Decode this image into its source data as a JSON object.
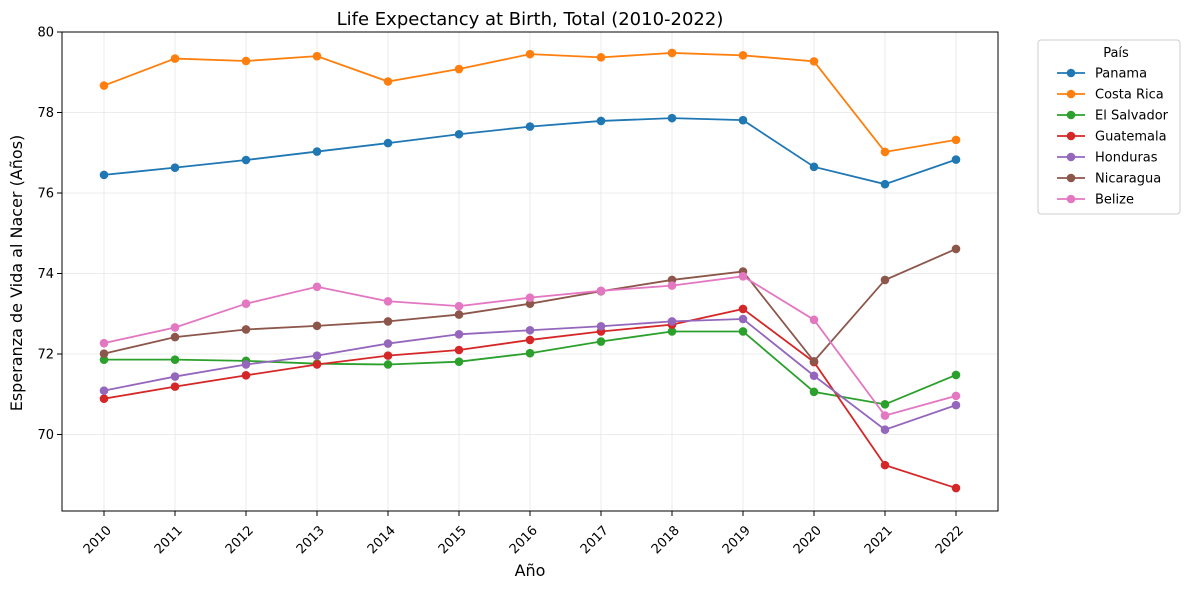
{
  "chart_data": {
    "type": "line",
    "title": "Life Expectancy at Birth, Total (2010-2022)",
    "xlabel": "Año",
    "ylabel": "Esperanza de Vida al Nacer (Años)",
    "x": [
      "2010",
      "2011",
      "2012",
      "2013",
      "2014",
      "2015",
      "2016",
      "2017",
      "2018",
      "2019",
      "2020",
      "2021",
      "2022"
    ],
    "ylim": [
      68.1,
      80.0
    ],
    "yticks": [
      70,
      72,
      74,
      76,
      78,
      80
    ],
    "grid": true,
    "legend": {
      "title": "País",
      "placement": "outside-top-right"
    },
    "series": [
      {
        "name": "Panama",
        "color": "#1f77b4",
        "values": [
          76.45,
          76.63,
          76.82,
          77.03,
          77.24,
          77.46,
          77.65,
          77.79,
          77.86,
          77.81,
          76.65,
          76.22,
          76.83
        ]
      },
      {
        "name": "Costa Rica",
        "color": "#ff7f0e",
        "values": [
          78.67,
          79.34,
          79.28,
          79.4,
          78.77,
          79.08,
          79.45,
          79.37,
          79.48,
          79.42,
          79.27,
          77.02,
          77.32
        ]
      },
      {
        "name": "El Salvador",
        "color": "#2ca02c",
        "values": [
          71.86,
          71.86,
          71.83,
          71.76,
          71.74,
          71.81,
          72.02,
          72.31,
          72.56,
          72.56,
          71.06,
          70.75,
          71.48
        ]
      },
      {
        "name": "Guatemala",
        "color": "#d62728",
        "values": [
          70.89,
          71.19,
          71.47,
          71.74,
          71.96,
          72.1,
          72.35,
          72.56,
          72.73,
          73.12,
          71.8,
          69.24,
          68.67
        ]
      },
      {
        "name": "Honduras",
        "color": "#9467bd",
        "values": [
          71.09,
          71.44,
          71.74,
          71.96,
          72.26,
          72.49,
          72.59,
          72.69,
          72.81,
          72.87,
          71.46,
          70.12,
          70.73
        ]
      },
      {
        "name": "Nicaragua",
        "color": "#8c564b",
        "values": [
          72.01,
          72.42,
          72.61,
          72.7,
          72.81,
          72.98,
          73.25,
          73.56,
          73.84,
          74.05,
          71.82,
          73.84,
          74.61
        ]
      },
      {
        "name": "Belize",
        "color": "#e377c2",
        "values": [
          72.27,
          72.66,
          73.25,
          73.67,
          73.31,
          73.19,
          73.4,
          73.57,
          73.7,
          73.93,
          72.85,
          70.47,
          70.96
        ]
      }
    ]
  }
}
